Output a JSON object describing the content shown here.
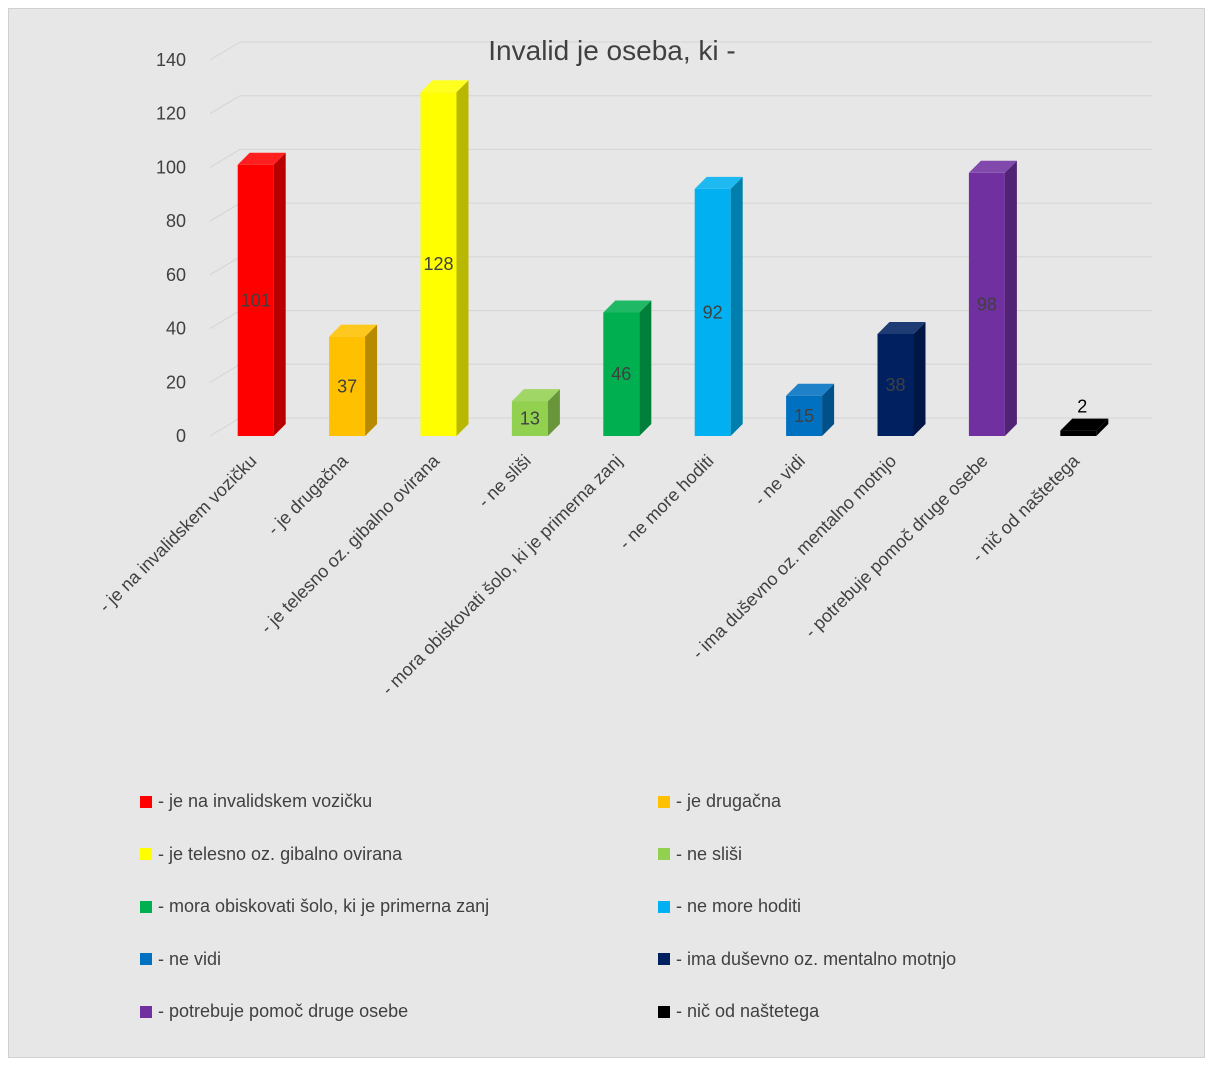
{
  "chart_data": {
    "type": "bar",
    "title": "Invalid je oseba, ki -",
    "categories": [
      "- je na invalidskem vozičku",
      "- je drugačna",
      "- je telesno oz. gibalno ovirana",
      "- ne sliši",
      "- mora obiskovati šolo, ki je primerna zanj",
      "- ne more hoditi",
      "- ne vidi",
      "- ima duševno oz. mentalno motnjo",
      "- potrebuje pomoč druge osebe",
      "- nič od naštetega"
    ],
    "values": [
      101,
      37,
      128,
      13,
      46,
      92,
      15,
      38,
      98,
      2
    ],
    "colors": [
      "#ff0000",
      "#ffc000",
      "#ffff00",
      "#92d050",
      "#00b050",
      "#00b0f0",
      "#0070c0",
      "#002060",
      "#7030a0",
      "#000000"
    ],
    "label_colors": [
      "#404040",
      "#404040",
      "#404040",
      "#404040",
      "#404040",
      "#404040",
      "#404040",
      "#404040",
      "#404040",
      "#000000"
    ],
    "ylim": [
      0,
      140
    ],
    "yticks": [
      0,
      20,
      40,
      60,
      80,
      100,
      120,
      140
    ],
    "grid": true,
    "style": "3d",
    "legend_position": "bottom"
  }
}
